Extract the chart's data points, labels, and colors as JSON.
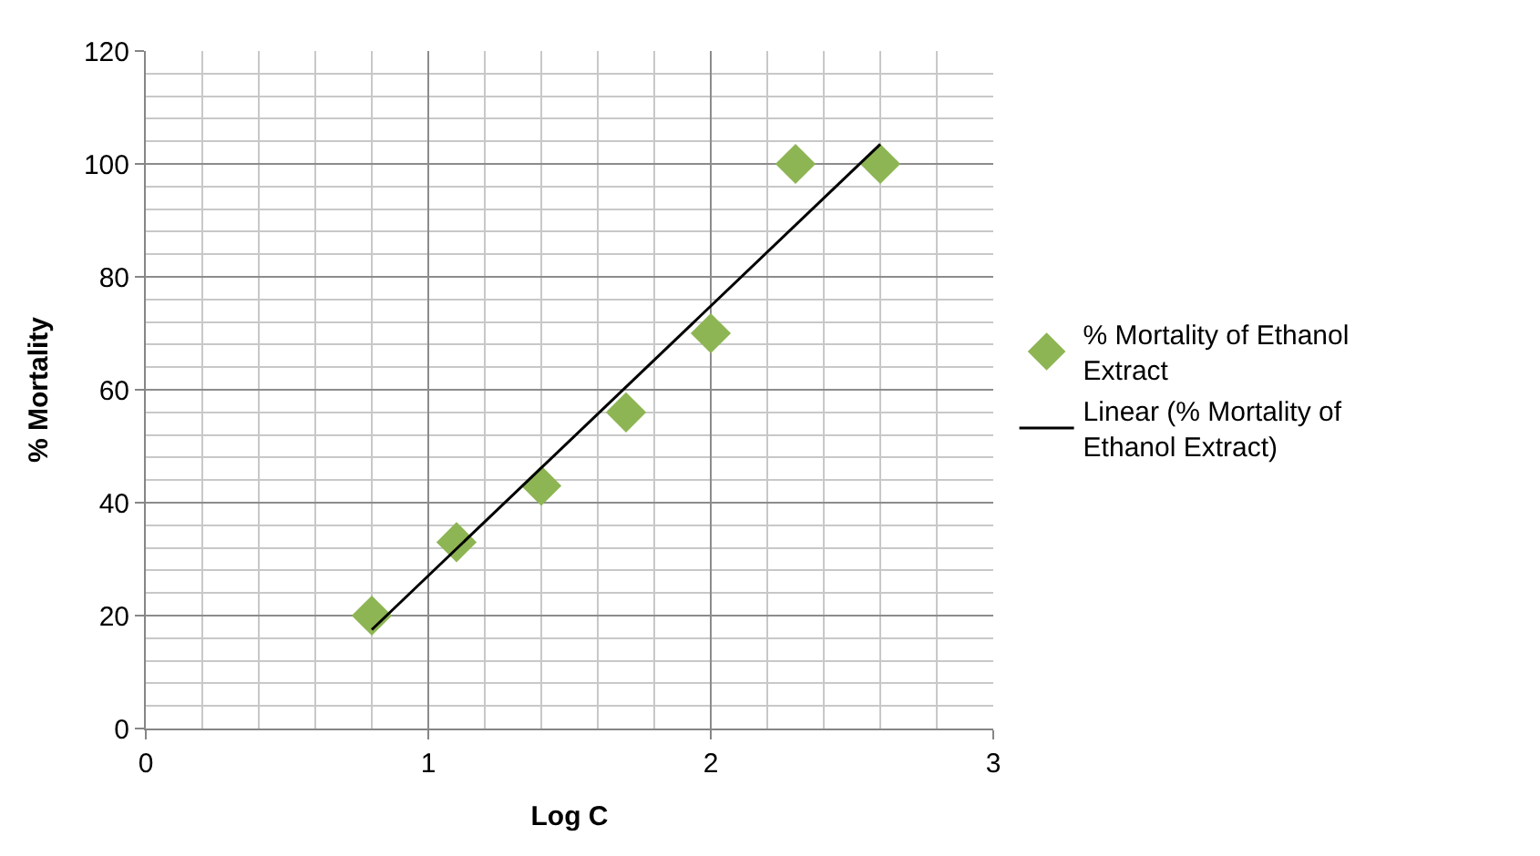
{
  "chart_data": {
    "type": "scatter",
    "xlabel": "Log C",
    "ylabel": "% Mortality",
    "xlim": [
      0,
      3
    ],
    "xticks": [
      0,
      1,
      2,
      3
    ],
    "ylim": [
      0,
      120
    ],
    "yticks": [
      0,
      20,
      40,
      60,
      80,
      100,
      120
    ],
    "grid": true,
    "legend": "right",
    "marker": "diamond",
    "series": [
      {
        "name": "% Mortality of Ethanol Extract",
        "color": "#8db553",
        "x": [
          0.8,
          1.1,
          1.4,
          1.7,
          2.0,
          2.3,
          2.6
        ],
        "values": [
          20,
          33,
          43,
          56,
          70,
          100,
          100
        ]
      },
      {
        "name": "Linear (% Mortality of Ethanol Extract)",
        "type": "line",
        "color": "#000000",
        "line_style": "solid",
        "marker": "none",
        "x": [
          0.8,
          2.6
        ],
        "values": [
          17.5,
          103.5
        ]
      }
    ]
  }
}
